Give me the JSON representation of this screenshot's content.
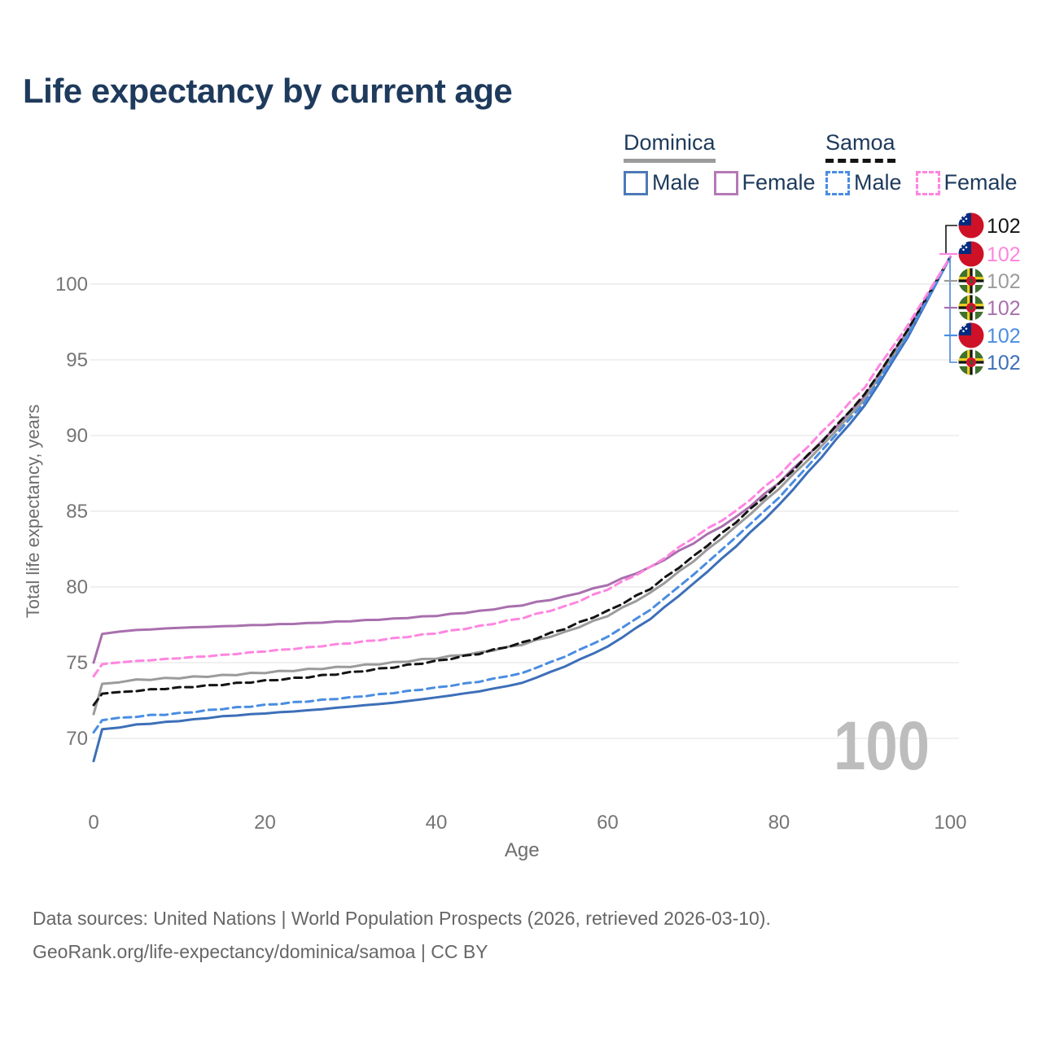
{
  "title": "Life expectancy by current age",
  "legend": {
    "groups": [
      {
        "name": "Dominica",
        "line_style": "solid",
        "line_color": "#9b9b9b",
        "items": [
          {
            "label": "Male",
            "color": "#4d79b8",
            "dash": false
          },
          {
            "label": "Female",
            "color": "#b57ab5",
            "dash": false
          }
        ]
      },
      {
        "name": "Samoa",
        "line_style": "dashed",
        "line_color": "#141414",
        "items": [
          {
            "label": "Male",
            "color": "#4a8de2",
            "dash": true
          },
          {
            "label": "Female",
            "color": "#ff85e0",
            "dash": true
          }
        ]
      }
    ]
  },
  "chart_data": {
    "type": "line",
    "title": "Life expectancy by current age",
    "xlabel": "Age",
    "ylabel": "Total life expectancy, years",
    "x_ticks": [
      0,
      20,
      40,
      60,
      80,
      100
    ],
    "y_ticks": [
      70,
      75,
      80,
      85,
      90,
      95,
      100
    ],
    "xlim": [
      0,
      100
    ],
    "ylim": [
      67.8,
      103
    ],
    "grid": "horizontal",
    "legend_position": "top-right",
    "ages": [
      0,
      1,
      5,
      10,
      15,
      20,
      25,
      30,
      35,
      40,
      45,
      50,
      55,
      60,
      65,
      70,
      75,
      80,
      85,
      90,
      95,
      100
    ],
    "series": [
      {
        "name": "Dominica Female",
        "country": "Dominica",
        "sex": "Female",
        "color": "#a86fad",
        "dash": false,
        "values": [
          75.0,
          76.9,
          77.15,
          77.3,
          77.4,
          77.5,
          77.6,
          77.75,
          77.9,
          78.1,
          78.4,
          78.8,
          79.35,
          80.15,
          81.3,
          82.9,
          84.6,
          86.9,
          89.6,
          92.6,
          96.9,
          101.8
        ]
      },
      {
        "name": "Dominica",
        "country": "Dominica",
        "sex": "All",
        "color": "#9b9b9b",
        "dash": false,
        "values": [
          71.6,
          73.6,
          73.85,
          74.0,
          74.15,
          74.35,
          74.55,
          74.75,
          75.0,
          75.3,
          75.65,
          76.2,
          77.0,
          78.1,
          79.6,
          81.7,
          84.0,
          86.5,
          89.3,
          92.4,
          96.7,
          101.8
        ]
      },
      {
        "name": "Dominica Male",
        "country": "Dominica",
        "sex": "Male",
        "color": "#3d6fb8",
        "dash": false,
        "values": [
          68.5,
          70.6,
          70.9,
          71.15,
          71.45,
          71.65,
          71.85,
          72.1,
          72.35,
          72.7,
          73.1,
          73.65,
          74.75,
          76.05,
          77.9,
          80.2,
          82.7,
          85.4,
          88.6,
          91.95,
          96.45,
          101.8
        ]
      },
      {
        "name": "Samoa",
        "country": "Samoa",
        "sex": "All",
        "color": "#141414",
        "dash": true,
        "values": [
          72.2,
          72.95,
          73.15,
          73.35,
          73.55,
          73.8,
          74.05,
          74.35,
          74.7,
          75.1,
          75.6,
          76.3,
          77.25,
          78.4,
          79.9,
          82.0,
          84.3,
          86.8,
          89.6,
          92.7,
          96.95,
          101.8
        ]
      },
      {
        "name": "Samoa Male",
        "country": "Samoa",
        "sex": "Male",
        "color": "#4a8de2",
        "dash": true,
        "values": [
          70.4,
          71.2,
          71.45,
          71.65,
          71.95,
          72.2,
          72.45,
          72.7,
          73.0,
          73.35,
          73.75,
          74.3,
          75.4,
          76.7,
          78.5,
          80.8,
          83.3,
          85.9,
          89.0,
          92.2,
          96.6,
          101.8
        ]
      },
      {
        "name": "Samoa Female",
        "country": "Samoa",
        "sex": "Female",
        "color": "#ff85e0",
        "dash": true,
        "values": [
          74.1,
          74.9,
          75.1,
          75.3,
          75.5,
          75.75,
          76.0,
          76.3,
          76.6,
          76.95,
          77.4,
          77.95,
          78.7,
          79.85,
          81.3,
          83.25,
          85.0,
          87.4,
          90.2,
          93.2,
          97.25,
          101.8
        ]
      }
    ],
    "end_labels": [
      {
        "value": "102",
        "flag": "samoa",
        "color": "#141414",
        "series": "Samoa"
      },
      {
        "value": "102",
        "flag": "samoa",
        "color": "#ff85e0",
        "series": "Samoa Female"
      },
      {
        "value": "102",
        "flag": "dominica",
        "color": "#9b9b9b",
        "series": "Dominica"
      },
      {
        "value": "102",
        "flag": "dominica",
        "color": "#a86fad",
        "series": "Dominica Female"
      },
      {
        "value": "102",
        "flag": "samoa",
        "color": "#4a8de2",
        "series": "Samoa Male"
      },
      {
        "value": "102",
        "flag": "dominica",
        "color": "#3d6fb8",
        "series": "Dominica Male"
      }
    ],
    "watermark": "100"
  },
  "footer": {
    "line1": "Data sources: United Nations | World Population Prospects (2026, retrieved 2026-03-10).",
    "line2": "GeoRank.org/life-expectancy/dominica/samoa | CC BY"
  }
}
